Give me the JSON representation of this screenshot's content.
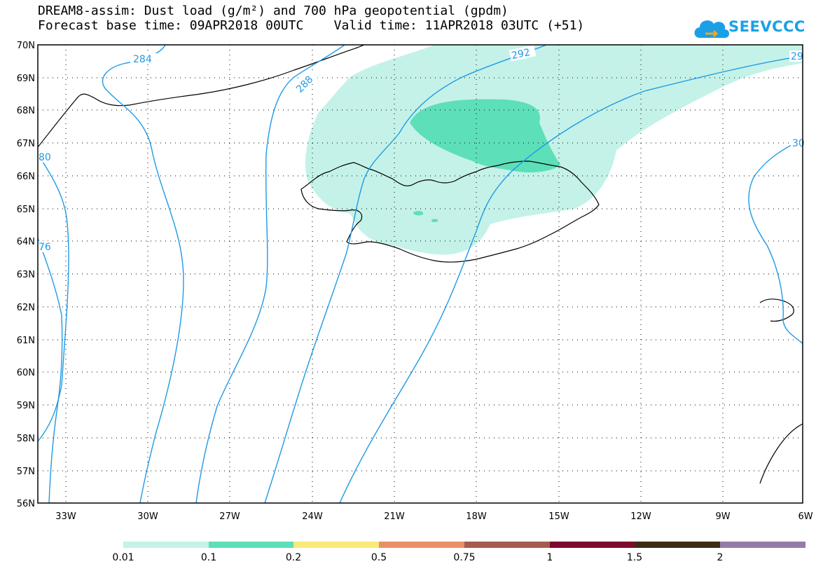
{
  "header": {
    "title_line1": "DREAM8-assim: Dust load (g/m²) and 700 hPa geopotential (gpdm)",
    "title_line2": "Forecast base time: 09APR2018 00UTC    Valid time: 11APR2018 03UTC (+51)"
  },
  "logo": {
    "text": "SEEVCCC",
    "icon": "cloud-icon"
  },
  "map": {
    "lat_labels": [
      "70N",
      "69N",
      "68N",
      "67N",
      "66N",
      "65N",
      "64N",
      "63N",
      "62N",
      "61N",
      "60N",
      "59N",
      "58N",
      "57N",
      "56N"
    ],
    "lon_labels": [
      "33W",
      "30W",
      "27W",
      "24W",
      "21W",
      "18W",
      "15W",
      "12W",
      "9W",
      "6W"
    ],
    "contour_labels": [
      "284",
      "288",
      "292",
      "29",
      "30",
      "80",
      "76"
    ],
    "colors": {
      "contour": "#1f9ae5",
      "dust_001": "#c4f2e8",
      "dust_01": "#5ddfb9"
    }
  },
  "colorbar": {
    "labels": [
      "0.01",
      "0.1",
      "0.2",
      "0.5",
      "0.75",
      "1",
      "1.5",
      "2"
    ],
    "colors": [
      "#c4f2e8",
      "#5ddfb9",
      "#f8ea7a",
      "#e9906a",
      "#a65c4d",
      "#7d0b2d",
      "#3d2b16",
      "#947ba8"
    ]
  }
}
